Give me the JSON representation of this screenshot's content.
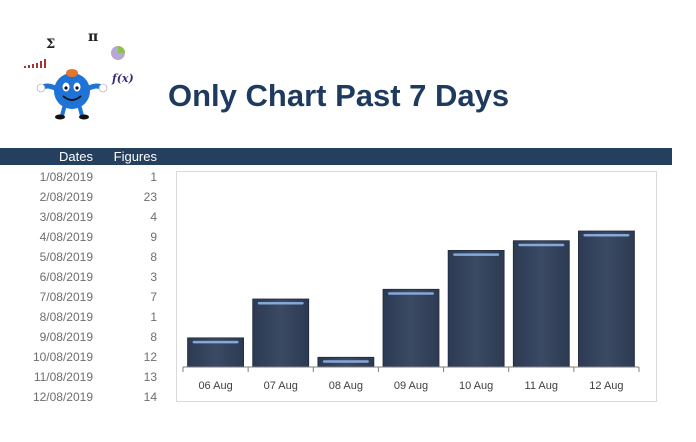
{
  "header": {
    "title": "Only Chart Past 7 Days"
  },
  "logo": {
    "icon": "mr-men-math-mascot",
    "symbols": [
      "Σ",
      "π",
      "f(x)"
    ]
  },
  "table": {
    "columns": {
      "dates": "Dates",
      "figures": "Figures"
    },
    "rows": [
      {
        "date": "1/08/2019",
        "figure": "1"
      },
      {
        "date": "2/08/2019",
        "figure": "23"
      },
      {
        "date": "3/08/2019",
        "figure": "4"
      },
      {
        "date": "4/08/2019",
        "figure": "9"
      },
      {
        "date": "5/08/2019",
        "figure": "8"
      },
      {
        "date": "6/08/2019",
        "figure": "3"
      },
      {
        "date": "7/08/2019",
        "figure": "7"
      },
      {
        "date": "8/08/2019",
        "figure": "1"
      },
      {
        "date": "9/08/2019",
        "figure": "8"
      },
      {
        "date": "10/08/2019",
        "figure": "12"
      },
      {
        "date": "11/08/2019",
        "figure": "13"
      },
      {
        "date": "12/08/2019",
        "figure": "14"
      }
    ]
  },
  "chart_data": {
    "type": "bar",
    "title": "",
    "xlabel": "",
    "ylabel": "",
    "categories": [
      "06 Aug",
      "07 Aug",
      "08 Aug",
      "09 Aug",
      "10 Aug",
      "11 Aug",
      "12 Aug"
    ],
    "values": [
      3,
      7,
      1,
      8,
      12,
      13,
      14
    ],
    "ylim": [
      0,
      14
    ],
    "grid": false,
    "legend": "none",
    "bar_color": "#3b4a64"
  }
}
